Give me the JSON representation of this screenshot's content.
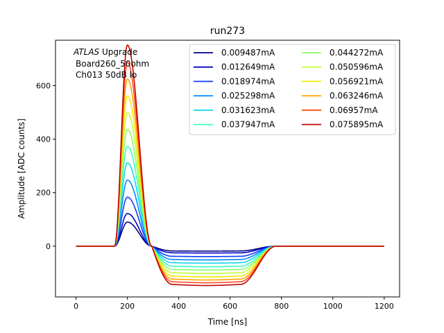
{
  "chart_data": {
    "type": "line",
    "title": "run273",
    "xlabel": "Time [ns]",
    "ylabel": "Amplitude [ADC counts]",
    "xlim": [
      -80,
      1260
    ],
    "ylim": [
      -190,
      770
    ],
    "xticks": [
      0,
      200,
      400,
      600,
      800,
      1000,
      1200
    ],
    "yticks": [
      0,
      200,
      400,
      600
    ],
    "grid": false,
    "legend_position": "top-right",
    "legend_columns": 2,
    "annotation": {
      "italic": "ATLAS",
      "rest": " Upgrade",
      "line2": "Board260_50ohm",
      "line3": "Ch013 50dB lo"
    },
    "pulse_model": {
      "description": "approximate pulse shape per series: flat baseline, rise from ~150 ns, peak at ~200 ns, undershoot plateau 300-650 ns, recovery by ~800 ns",
      "t_start": 0,
      "t_end": 1200,
      "t_rise": 150,
      "t_peak": 200,
      "t_zero_cross": 295,
      "t_plateau_end": 640,
      "t_recovered": 780
    },
    "series": [
      {
        "name": "0.009487mA",
        "color": "#00007f",
        "peak": 90,
        "undershoot": -18
      },
      {
        "name": "0.012649mA",
        "color": "#0000c8",
        "peak": 122,
        "undershoot": -25
      },
      {
        "name": "0.018974mA",
        "color": "#0d3bff",
        "peak": 183,
        "undershoot": -38
      },
      {
        "name": "0.025298mA",
        "color": "#0088ff",
        "peak": 247,
        "undershoot": -50
      },
      {
        "name": "0.031623mA",
        "color": "#14d8ee",
        "peak": 311,
        "undershoot": -62
      },
      {
        "name": "0.037947mA",
        "color": "#3cfdc0",
        "peak": 373,
        "undershoot": -75
      },
      {
        "name": "0.044272mA",
        "color": "#8bff6b",
        "peak": 436,
        "undershoot": -87
      },
      {
        "name": "0.050596mA",
        "color": "#c2ff34",
        "peak": 499,
        "undershoot": -99
      },
      {
        "name": "0.056921mA",
        "color": "#f4e900",
        "peak": 562,
        "undershoot": -112
      },
      {
        "name": "0.063246mA",
        "color": "#ffa200",
        "peak": 625,
        "undershoot": -123
      },
      {
        "name": "0.06957mA",
        "color": "#ff4a1e",
        "peak": 688,
        "undershoot": -133
      },
      {
        "name": "0.075895mA",
        "color": "#c10000",
        "peak": 752,
        "undershoot": -143
      }
    ]
  }
}
